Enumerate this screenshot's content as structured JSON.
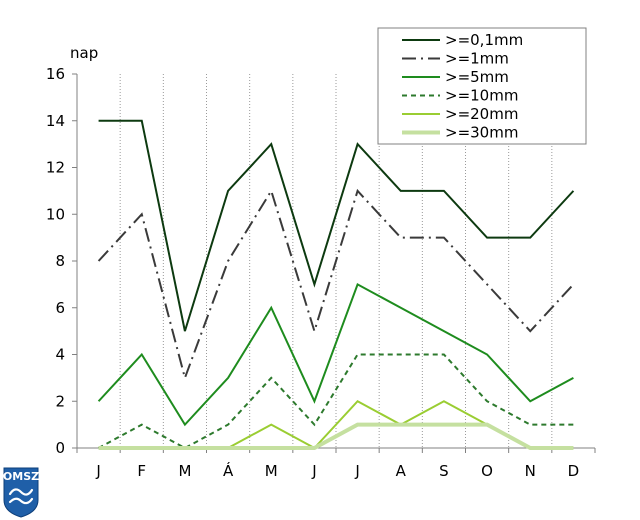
{
  "logo": {
    "text": "OMSZ"
  },
  "colors": {
    "axis": "#808080",
    "gridline": "#9a9a9a"
  },
  "chart_data": {
    "type": "line",
    "ylabel": "nap",
    "xlabel": "",
    "ylim": [
      0,
      16
    ],
    "yticks": [
      0,
      2,
      4,
      6,
      8,
      10,
      12,
      14,
      16
    ],
    "categories": [
      "J",
      "F",
      "M",
      "Á",
      "M",
      "J",
      "J",
      "A",
      "S",
      "O",
      "N",
      "D"
    ],
    "grid": "vertical",
    "legend_position": "top-right",
    "series": [
      {
        "name": ">=0,1mm",
        "color": "#0d3a10",
        "style": "solid",
        "values": [
          14,
          14,
          5,
          11,
          13,
          7,
          13,
          11,
          11,
          9,
          9,
          11
        ]
      },
      {
        "name": ">=1mm",
        "color": "#3a3a3a",
        "style": "dashdot",
        "values": [
          8,
          10,
          3,
          8,
          11,
          5,
          11,
          9,
          9,
          7,
          5,
          7
        ]
      },
      {
        "name": ">=5mm",
        "color": "#1e8c1e",
        "style": "solid",
        "values": [
          2,
          4,
          1,
          3,
          6,
          2,
          7,
          6,
          5,
          4,
          2,
          3
        ]
      },
      {
        "name": ">=10mm",
        "color": "#2d7a2d",
        "style": "dashed",
        "values": [
          0,
          1,
          0,
          1,
          3,
          1,
          4,
          4,
          4,
          2,
          1,
          1
        ]
      },
      {
        "name": ">=20mm",
        "color": "#9acd32",
        "style": "solid",
        "values": [
          0,
          0,
          0,
          0,
          1,
          0,
          2,
          1,
          2,
          1,
          0,
          0
        ]
      },
      {
        "name": ">=30mm",
        "color": "#c5e0a0",
        "style": "thick",
        "values": [
          0,
          0,
          0,
          0,
          0,
          0,
          1,
          1,
          1,
          1,
          0,
          0
        ]
      }
    ]
  }
}
